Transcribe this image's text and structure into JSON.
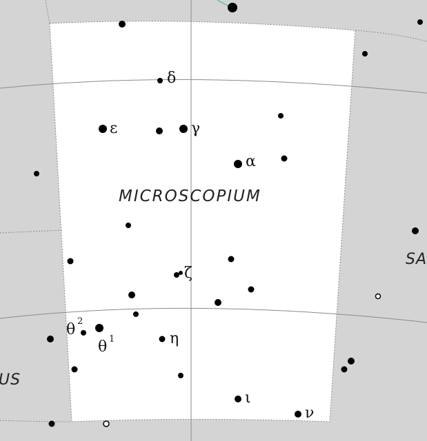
{
  "constellation": {
    "name": "MICROSCOPIUM",
    "area_fill": "#ffffff",
    "outside_fill": "#d4d4d4"
  },
  "neighbors": {
    "right_partial_label": "SA",
    "left_partial_label": "US"
  },
  "colors": {
    "star": "#000000",
    "grid_line": "#8a8a8a",
    "boundary": "#8a8a8a",
    "stick_line": "#7fc99a"
  },
  "star_labels": {
    "delta": "δ",
    "epsilon": "ε",
    "gamma": "γ",
    "alpha": "α",
    "zeta": "ζ",
    "theta2": "θ",
    "theta2_sup": "2",
    "theta1": "θ",
    "theta1_sup": "1",
    "eta": "η",
    "iota": "ι",
    "nu": "ν"
  }
}
